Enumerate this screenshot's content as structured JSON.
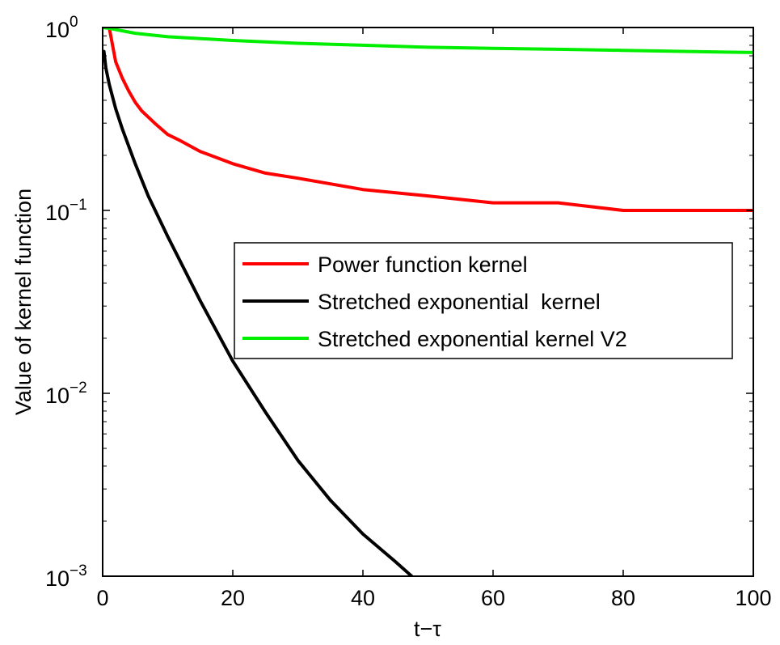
{
  "chart_data": {
    "type": "line",
    "xlabel": "t−τ",
    "ylabel": "Value of kernel function",
    "xlim": [
      0,
      100
    ],
    "ylim": [
      0.001,
      1
    ],
    "yscale": "log",
    "x_ticks": [
      0,
      20,
      40,
      60,
      80,
      100
    ],
    "y_ticks": [
      {
        "value": 1,
        "base": "10",
        "exp": "0"
      },
      {
        "value": 0.1,
        "base": "10",
        "exp": "−1"
      },
      {
        "value": 0.01,
        "base": "10",
        "exp": "−2"
      },
      {
        "value": 0.001,
        "base": "10",
        "exp": "−3"
      }
    ],
    "grid": false,
    "legend_position": "center-right",
    "series": [
      {
        "name": "Power function kernel",
        "color": "#ff0000",
        "x": [
          0.5,
          1,
          2,
          3,
          4,
          5,
          6,
          8,
          10,
          12,
          15,
          20,
          25,
          30,
          40,
          50,
          60,
          70,
          80,
          90,
          100
        ],
        "y": [
          1.0,
          1.0,
          0.65,
          0.53,
          0.45,
          0.39,
          0.35,
          0.3,
          0.26,
          0.24,
          0.21,
          0.18,
          0.16,
          0.15,
          0.13,
          0.12,
          0.11,
          0.11,
          0.1,
          0.1,
          0.1
        ]
      },
      {
        "name": "Stretched exponential  kernel",
        "color": "#000000",
        "x": [
          0.2,
          0.5,
          1,
          2,
          3,
          5,
          7,
          10,
          15,
          20,
          25,
          30,
          35,
          40,
          45,
          47.5
        ],
        "y": [
          0.74,
          0.6,
          0.49,
          0.36,
          0.28,
          0.18,
          0.12,
          0.072,
          0.032,
          0.015,
          0.0079,
          0.0043,
          0.0026,
          0.0017,
          0.0012,
          0.001
        ]
      },
      {
        "name": "Stretched exponential kernel V2",
        "color": "#00ee00",
        "x": [
          0,
          1,
          5,
          10,
          20,
          30,
          40,
          50,
          60,
          70,
          80,
          90,
          100
        ],
        "y": [
          1.0,
          0.99,
          0.93,
          0.89,
          0.85,
          0.82,
          0.8,
          0.78,
          0.77,
          0.76,
          0.75,
          0.74,
          0.73
        ]
      }
    ]
  }
}
